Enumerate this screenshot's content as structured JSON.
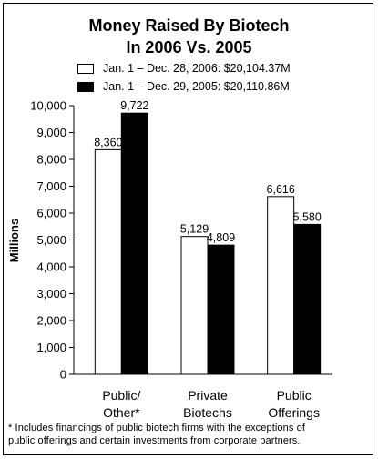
{
  "chart_data": {
    "type": "bar",
    "title_lines": [
      "Money Raised By Biotech",
      "In 2006 Vs. 2005"
    ],
    "ylabel": "Millions",
    "ylim": [
      0,
      10000
    ],
    "yticks": [
      0,
      1000,
      2000,
      3000,
      4000,
      5000,
      6000,
      7000,
      8000,
      9000,
      10000
    ],
    "ytick_labels": [
      "0",
      "1,000",
      "2,000",
      "3,000",
      "4,000",
      "5,000",
      "6,000",
      "7,000",
      "8,000",
      "9,000",
      "10,000"
    ],
    "categories": [
      [
        "Public/",
        "Other*"
      ],
      [
        "Private",
        "Biotechs"
      ],
      [
        "Public",
        "Offerings"
      ]
    ],
    "series": [
      {
        "name": "Jan. 1 – Dec. 28, 2006: $20,104.37M",
        "fill": "#ffffff",
        "values": [
          8360,
          5129,
          6616
        ],
        "labels": [
          "8,360",
          "5,129",
          "6,616"
        ]
      },
      {
        "name": "Jan. 1 – Dec. 29, 2005: $20,110.86M",
        "fill": "#000000",
        "values": [
          9722,
          4809,
          5580
        ],
        "labels": [
          "9,722",
          "4,809",
          "5,580"
        ]
      }
    ],
    "legend_position": "top",
    "grid": false,
    "footnote_lines": [
      "* Includes financings of public biotech firms with the exceptions of",
      "public offerings and certain investments from corporate partners."
    ]
  }
}
